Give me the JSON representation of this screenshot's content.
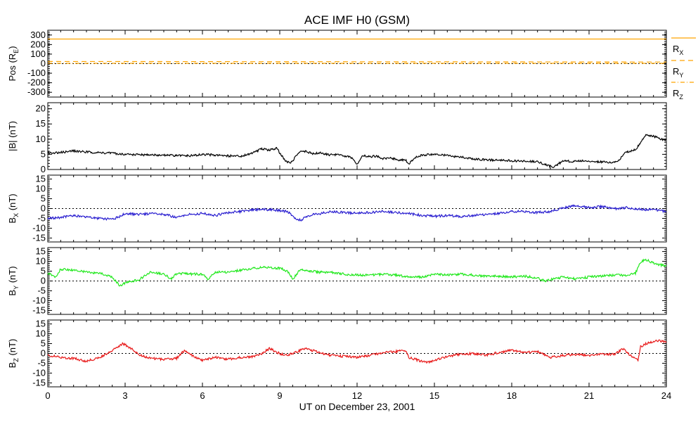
{
  "chart_data": {
    "title": "ACE IMF H0 (GSM)",
    "xlabel": "UT on December 23, 2001",
    "x_ticks": [
      "0",
      "3",
      "6",
      "9",
      "12",
      "15",
      "18",
      "21",
      "24"
    ],
    "x_range_hours": [
      0,
      24
    ],
    "panels": [
      {
        "id": "pos",
        "type": "line",
        "ylabel_parts": [
          "Pos (R",
          "E",
          ")"
        ],
        "ylim": [
          -350,
          350
        ],
        "yticks": [
          300,
          200,
          100,
          0,
          -100,
          -200,
          -300
        ],
        "zero_line": true,
        "series": [
          {
            "name": "RX",
            "label_main": "R",
            "label_sub": "X",
            "style": "solid",
            "color": "#ffa500",
            "x": [
              0,
              24
            ],
            "y": [
              258,
              258
            ]
          },
          {
            "name": "RY",
            "label_main": "R",
            "label_sub": "Y",
            "style": "dashed",
            "color": "#ffa500",
            "x": [
              0,
              4,
              8,
              12,
              16,
              20,
              24
            ],
            "y": [
              23,
              22,
              21,
              20,
              19,
              18,
              17
            ]
          },
          {
            "name": "RZ",
            "label_main": "R",
            "label_sub": "Z",
            "style": "dashdot",
            "color": "#ffa500",
            "x": [
              0,
              24
            ],
            "y": [
              4,
              4
            ]
          }
        ]
      },
      {
        "id": "btot",
        "type": "line",
        "ylabel_parts": [
          "|B| (nT)"
        ],
        "ylim": [
          0,
          22
        ],
        "yticks": [
          20,
          15,
          10,
          5,
          0
        ],
        "zero_line": false,
        "series": [
          {
            "name": "|B|",
            "color": "#000000",
            "x": [
              0,
              0.5,
              1,
              1.5,
              2,
              2.5,
              3,
              3.5,
              4,
              4.5,
              5,
              5.5,
              6,
              6.5,
              7,
              7.5,
              8,
              8.3,
              8.6,
              8.9,
              9,
              9.2,
              9.4,
              9.6,
              9.8,
              10,
              10.3,
              10.6,
              10.9,
              11.2,
              11.5,
              11.8,
              12,
              12.2,
              12.5,
              12.8,
              13,
              13.3,
              13.6,
              13.9,
              14,
              14.3,
              14.6,
              15,
              15.5,
              16,
              16.5,
              17,
              17.5,
              18,
              18.5,
              19,
              19.3,
              19.6,
              19.8,
              20,
              20.3,
              20.6,
              21,
              21.5,
              22,
              22.2,
              22.4,
              22.6,
              22.8,
              23,
              23.2,
              23.5,
              23.8,
              24
            ],
            "y": [
              5.5,
              5.6,
              6.1,
              5.8,
              5.5,
              5.4,
              5.0,
              4.9,
              4.8,
              4.7,
              4.6,
              4.5,
              4.9,
              4.8,
              4.5,
              4.4,
              5.6,
              6.8,
              6.4,
              7.0,
              5.5,
              3.0,
              2.0,
              4.0,
              5.8,
              6.0,
              5.2,
              5.5,
              4.8,
              4.9,
              4.5,
              3.8,
              1.5,
              4.5,
              4.3,
              4.4,
              3.5,
              3.8,
              3.2,
              3.0,
              1.8,
              4.2,
              4.8,
              5.0,
              4.6,
              4.1,
              3.5,
              3.2,
              3.0,
              2.9,
              2.7,
              2.6,
              1.6,
              0.8,
              1.8,
              2.8,
              2.7,
              2.9,
              2.6,
              2.5,
              2.3,
              3.5,
              5.5,
              6.0,
              6.5,
              9.0,
              11.5,
              11.0,
              10.0,
              9.8
            ]
          }
        ]
      },
      {
        "id": "bx",
        "type": "line",
        "ylabel_parts": [
          "B",
          "X",
          " (nT)"
        ],
        "ylim": [
          -17,
          17
        ],
        "yticks": [
          15,
          10,
          5,
          0,
          -5,
          -10,
          -15
        ],
        "zero_line": true,
        "series": [
          {
            "name": "Bx",
            "color": "#2a1fd0",
            "x": [
              0,
              0.5,
              1,
              1.5,
              2,
              2.5,
              2.8,
              3,
              3.5,
              4,
              4.5,
              5,
              5.5,
              6,
              6.5,
              7,
              7.5,
              8,
              8.5,
              9,
              9.3,
              9.6,
              9.8,
              10,
              10.3,
              10.6,
              11,
              11.5,
              12,
              12.5,
              13,
              13.5,
              14,
              14.5,
              15,
              15.5,
              16,
              16.5,
              17,
              17.5,
              18,
              18.5,
              19,
              19.5,
              20,
              20.5,
              21,
              21.5,
              22,
              22.5,
              23,
              23.5,
              24
            ],
            "y": [
              -5.0,
              -4.5,
              -3.5,
              -4.5,
              -5.0,
              -5.5,
              -4.0,
              -2.5,
              -3.0,
              -2.5,
              -3.0,
              -4.5,
              -3.0,
              -2.5,
              -3.5,
              -2.0,
              -1.5,
              -0.5,
              -0.5,
              -1.0,
              -1.5,
              -5.0,
              -6.0,
              -4.5,
              -3.0,
              -2.5,
              -1.5,
              -2.0,
              -2.5,
              -2.0,
              -1.5,
              -2.0,
              -2.5,
              -3.5,
              -4.0,
              -3.5,
              -4.0,
              -3.5,
              -3.0,
              -2.5,
              -1.5,
              -1.5,
              -2.0,
              -1.5,
              0.5,
              1.5,
              0.5,
              1.0,
              0.0,
              0.5,
              -0.5,
              -0.5,
              -1.5
            ]
          }
        ]
      },
      {
        "id": "by",
        "type": "line",
        "ylabel_parts": [
          "B",
          "Y",
          " (nT)"
        ],
        "ylim": [
          -17,
          17
        ],
        "yticks": [
          15,
          10,
          5,
          0,
          -5,
          -10,
          -15
        ],
        "zero_line": true,
        "series": [
          {
            "name": "By",
            "color": "#22e81e",
            "x": [
              0,
              0.3,
              0.5,
              1,
              1.5,
              2,
              2.5,
              2.8,
              3,
              3.5,
              4,
              4.5,
              4.8,
              5,
              5.5,
              6,
              6.2,
              6.5,
              7,
              7.5,
              8,
              8.5,
              9,
              9.3,
              9.5,
              9.8,
              10,
              10.5,
              11,
              11.5,
              12,
              12.5,
              13,
              13.5,
              14,
              14.5,
              15,
              15.5,
              16,
              16.5,
              17,
              17.5,
              18,
              18.5,
              19,
              19.3,
              19.6,
              20,
              20.5,
              21,
              21.5,
              22,
              22.5,
              22.8,
              23,
              23.2,
              23.5,
              24
            ],
            "y": [
              4.0,
              2.0,
              6.0,
              5.5,
              4.5,
              4.0,
              2.0,
              -2.5,
              -1.0,
              0.5,
              4.5,
              3.5,
              1.0,
              4.0,
              3.5,
              3.5,
              1.0,
              4.5,
              4.5,
              5.5,
              6.5,
              7.0,
              6.5,
              5.0,
              1.0,
              6.0,
              5.5,
              4.5,
              4.5,
              3.5,
              3.0,
              3.0,
              3.5,
              3.0,
              2.0,
              2.0,
              3.5,
              3.0,
              3.5,
              3.0,
              2.5,
              2.5,
              2.0,
              2.5,
              1.5,
              0.0,
              1.0,
              2.0,
              1.0,
              2.0,
              2.5,
              3.0,
              3.0,
              4.0,
              9.5,
              11.0,
              9.0,
              7.5
            ]
          }
        ]
      },
      {
        "id": "bz",
        "type": "line",
        "ylabel_parts": [
          "B",
          "Z",
          " (nT)"
        ],
        "ylim": [
          -17,
          17
        ],
        "yticks": [
          15,
          10,
          5,
          0,
          -5,
          -10,
          -15
        ],
        "zero_line": true,
        "series": [
          {
            "name": "Bz",
            "color": "#e81a1a",
            "x": [
              0,
              0.5,
              1,
              1.5,
              2,
              2.3,
              2.6,
              2.9,
              3,
              3.3,
              3.6,
              4,
              4.5,
              5,
              5.3,
              5.6,
              6,
              6.5,
              7,
              7.5,
              8,
              8.3,
              8.6,
              8.9,
              9.2,
              9.5,
              10,
              10.5,
              11,
              11.5,
              12,
              12.5,
              13,
              13.5,
              13.9,
              14,
              14.5,
              14.8,
              15,
              15.5,
              16,
              16.5,
              17,
              17.5,
              18,
              18.5,
              19,
              19.5,
              20,
              20.5,
              21,
              21.5,
              22,
              22.3,
              22.6,
              22.9,
              23,
              23.3,
              23.6,
              24
            ],
            "y": [
              -1.0,
              -2.0,
              -2.5,
              -4.0,
              -2.0,
              0.0,
              2.5,
              5.0,
              4.5,
              2.0,
              -1.0,
              -2.5,
              -3.0,
              -2.5,
              1.5,
              -1.0,
              -3.5,
              -2.0,
              -3.0,
              -2.0,
              -1.5,
              0.0,
              2.5,
              0.5,
              -1.0,
              0.0,
              2.5,
              0.5,
              -1.0,
              -1.5,
              -2.0,
              -1.0,
              0.5,
              1.0,
              1.5,
              -2.0,
              -4.0,
              -4.5,
              -3.5,
              -1.5,
              -0.5,
              0.0,
              -1.0,
              0.5,
              1.5,
              0.5,
              1.0,
              -2.0,
              -1.0,
              -0.5,
              -1.0,
              -0.5,
              -0.5,
              2.5,
              -1.0,
              -3.5,
              3.5,
              5.5,
              6.5,
              6.0
            ]
          }
        ]
      }
    ]
  }
}
